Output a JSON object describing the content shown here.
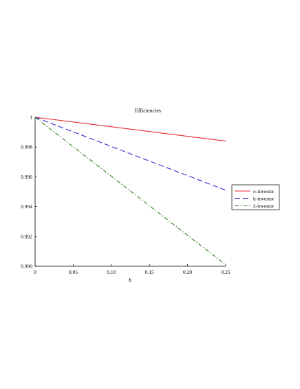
{
  "chart_data": {
    "type": "line",
    "title": "Efficiencies",
    "xlabel": "h",
    "ylabel": "",
    "xlim": [
      0,
      0.25
    ],
    "ylim": [
      0.99,
      1.0
    ],
    "x_ticks": [
      "0",
      "0.05",
      "0.10",
      "0.15",
      "0.20",
      "0.25"
    ],
    "y_ticks": [
      "0.990",
      "0.992",
      "0.994",
      "0.996",
      "0.998",
      "1"
    ],
    "x_tick_values": [
      0,
      0.05,
      0.1,
      0.15,
      0.2,
      0.25
    ],
    "y_tick_values": [
      0.99,
      0.992,
      0.994,
      0.996,
      0.998,
      1.0
    ],
    "grid": false,
    "legend_position": "right",
    "series": [
      {
        "name": "o-investor",
        "color": "#e8272b",
        "dash": "solid",
        "x": [
          0,
          0.25
        ],
        "y": [
          1.0,
          0.9984
        ]
      },
      {
        "name": "h-investor",
        "color": "#2b2bd6",
        "dash": "dashed",
        "x": [
          0,
          0.25
        ],
        "y": [
          1.0,
          0.9951
        ]
      },
      {
        "name": "λ-investor",
        "color": "#2e7d1e",
        "dash": "dashdot",
        "x": [
          0,
          0.25
        ],
        "y": [
          1.0,
          0.9901
        ]
      }
    ]
  }
}
